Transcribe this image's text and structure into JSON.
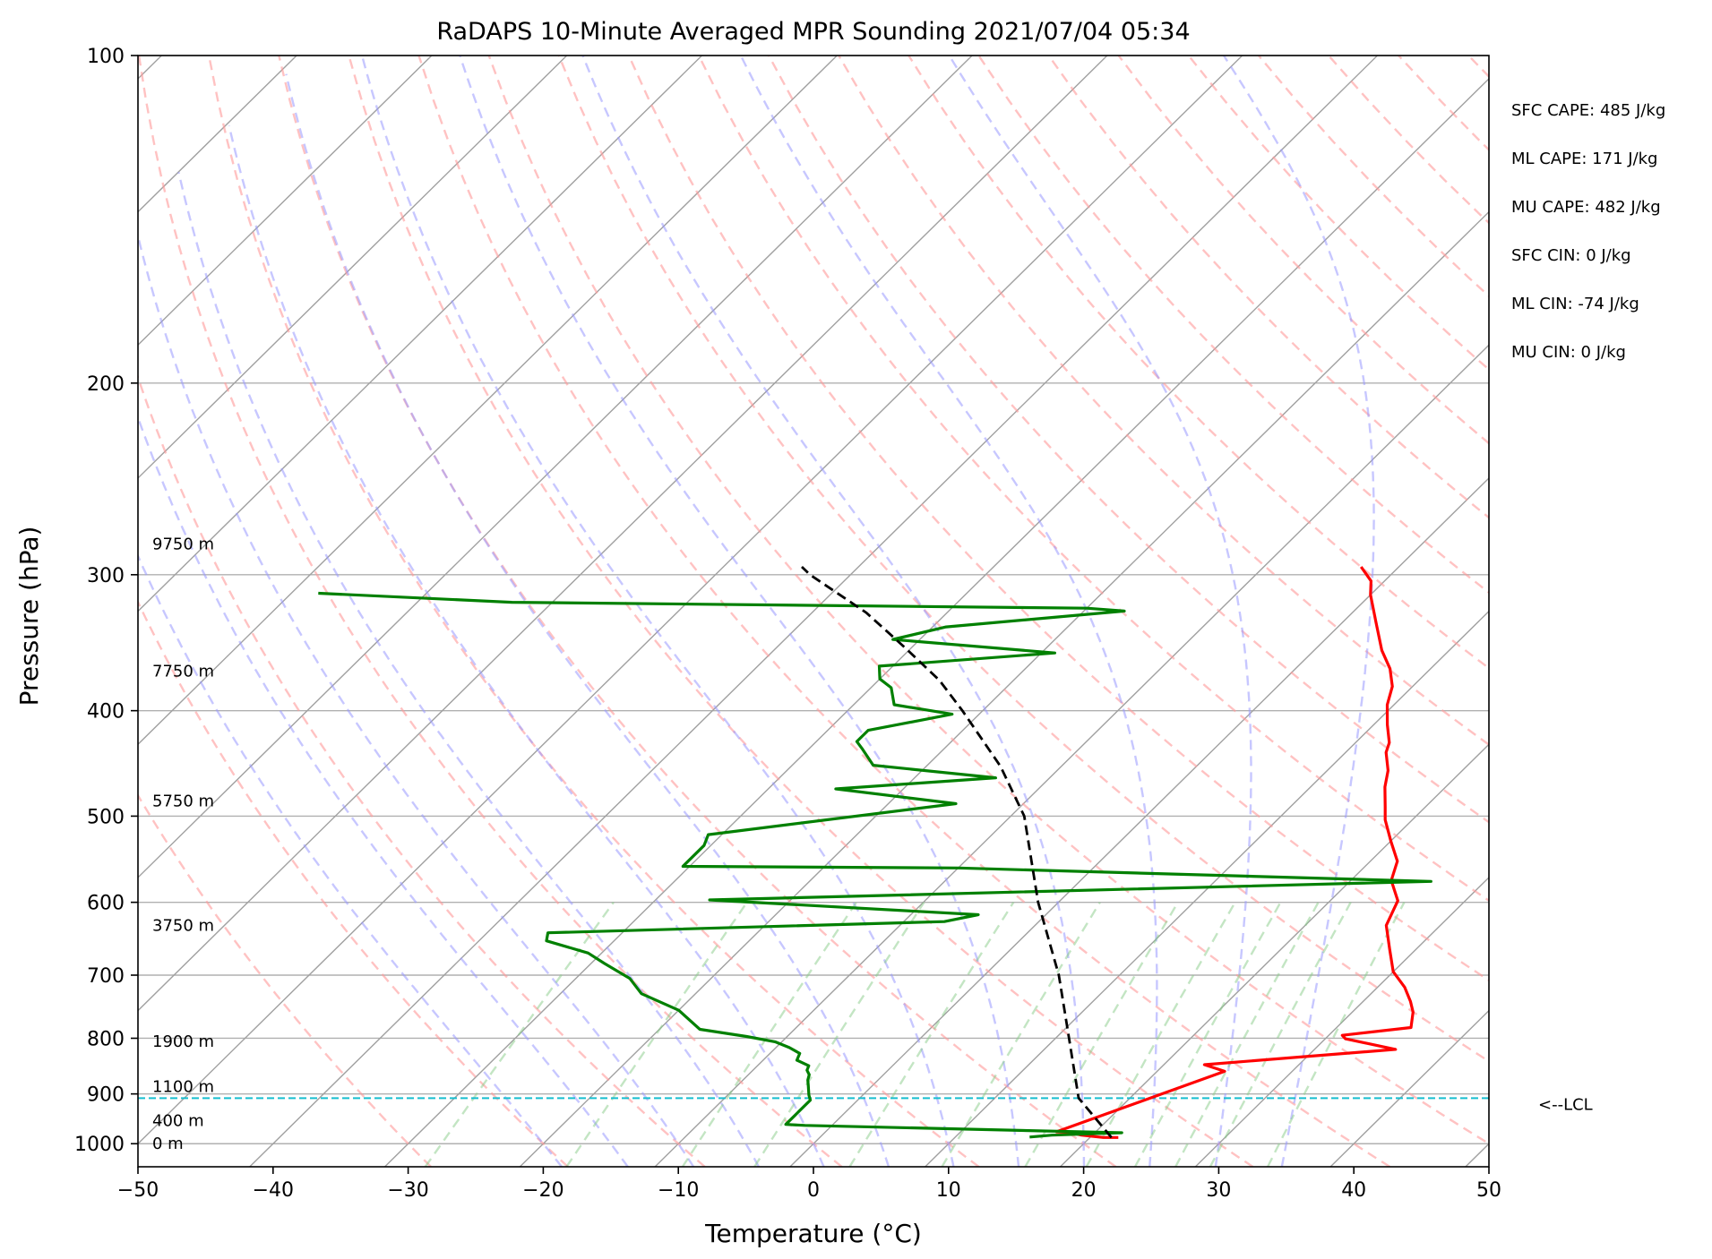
{
  "chart_data": {
    "type": "line",
    "subtype": "skew-t log-p sounding",
    "title": "RaDAPS 10-Minute Averaged MPR Sounding 2021/07/04 05:34",
    "xlabel": "Temperature (°C)",
    "ylabel": "Pressure (hPa)",
    "xlim": [
      -50,
      50
    ],
    "ylim": [
      1050,
      100
    ],
    "y_scale": "log",
    "x_ticks": [
      -50,
      -40,
      -30,
      -20,
      -10,
      0,
      10,
      20,
      30,
      40,
      50
    ],
    "x_tick_labels": [
      "−50",
      "−40",
      "−30",
      "−20",
      "−10",
      "0",
      "10",
      "20",
      "30",
      "40",
      "50"
    ],
    "y_ticks": [
      100,
      200,
      300,
      400,
      500,
      600,
      700,
      800,
      900,
      1000
    ],
    "y_tick_labels": [
      "100",
      "200",
      "300",
      "400",
      "500",
      "600",
      "700",
      "800",
      "900",
      "1000"
    ],
    "grid": true,
    "reference_lines": {
      "dry_adiabats_theta_c": [
        -30,
        -20,
        -10,
        0,
        10,
        20,
        30,
        40,
        50,
        60,
        70,
        80,
        90,
        100,
        110,
        120,
        130,
        140,
        150,
        160,
        170,
        180,
        190,
        200
      ],
      "moist_adiabats_c": [
        -20,
        -15,
        -10,
        -5,
        0,
        5,
        10,
        15,
        20,
        25,
        30,
        35
      ],
      "mixing_ratio_lines_p_top": 600
    },
    "series": [
      {
        "role": "temperature",
        "color": "#ff0000",
        "points": [
          [
            22.1,
            987
          ],
          [
            21.0,
            987
          ],
          [
            19.2,
            982
          ],
          [
            18.0,
            976
          ],
          [
            17.1,
            975
          ],
          [
            25.0,
            858
          ],
          [
            23.0,
            846
          ],
          [
            36.0,
            819
          ],
          [
            31.5,
            801
          ],
          [
            31.0,
            795
          ],
          [
            35.5,
            782
          ],
          [
            34.5,
            757
          ],
          [
            33.5,
            740
          ],
          [
            32.0,
            718
          ],
          [
            30.0,
            695
          ],
          [
            28.0,
            662
          ],
          [
            26.0,
            630
          ],
          [
            25.0,
            598
          ],
          [
            23.0,
            573
          ],
          [
            22.0,
            550
          ],
          [
            20.0,
            527
          ],
          [
            18.0,
            504
          ],
          [
            17.0,
            490
          ],
          [
            15.5,
            470
          ],
          [
            14.5,
            454
          ],
          [
            13.0,
            437
          ],
          [
            12.5,
            428
          ],
          [
            11.0,
            412
          ],
          [
            9.5,
            395
          ],
          [
            8.5,
            380
          ],
          [
            7.0,
            366
          ],
          [
            5.0,
            352
          ],
          [
            2.5,
            332
          ],
          [
            0.0,
            313
          ],
          [
            -1.0,
            304
          ],
          [
            -2.8,
            295
          ]
        ]
      },
      {
        "role": "dewpoint",
        "color": "#008000",
        "points": [
          [
            15.5,
            986
          ],
          [
            17.0,
            982
          ],
          [
            20.0,
            979
          ],
          [
            22.0,
            977
          ],
          [
            -2.0,
            962
          ],
          [
            -3.5,
            960
          ],
          [
            -3.5,
            912
          ],
          [
            -4.0,
            902
          ],
          [
            -4.8,
            883
          ],
          [
            -5.2,
            874
          ],
          [
            -5.5,
            864
          ],
          [
            -6.0,
            856
          ],
          [
            -6.2,
            848
          ],
          [
            -7.5,
            838
          ],
          [
            -7.8,
            826
          ],
          [
            -9.0,
            816
          ],
          [
            -10.5,
            806
          ],
          [
            -13.0,
            797
          ],
          [
            -17.0,
            785
          ],
          [
            -20.0,
            754
          ],
          [
            -24.0,
            728
          ],
          [
            -26.0,
            705
          ],
          [
            -29.0,
            683
          ],
          [
            -31.0,
            668
          ],
          [
            -35.0,
            651
          ],
          [
            -35.5,
            640
          ],
          [
            -7.0,
            625
          ],
          [
            -5.0,
            616
          ],
          [
            -26.0,
            597
          ],
          [
            26.0,
            574
          ],
          [
            -10.0,
            558
          ],
          [
            -30.5,
            556
          ],
          [
            -30.5,
            532
          ],
          [
            -31.0,
            520
          ],
          [
            -15.0,
            487
          ],
          [
            -25.0,
            472
          ],
          [
            -14.0,
            461
          ],
          [
            -24.0,
            449
          ],
          [
            -26.0,
            434
          ],
          [
            -27.0,
            427
          ],
          [
            -27.0,
            417
          ],
          [
            -22.0,
            403
          ],
          [
            -27.0,
            395
          ],
          [
            -28.5,
            381
          ],
          [
            -30.0,
            374
          ],
          [
            -31.0,
            364
          ],
          [
            -19.0,
            354
          ],
          [
            -32.0,
            344
          ],
          [
            -29.0,
            335
          ],
          [
            -17.0,
            324
          ],
          [
            -20.0,
            322
          ],
          [
            -63.0,
            318
          ],
          [
            -78.0,
            312
          ]
        ]
      },
      {
        "role": "parcel path",
        "color": "#000000",
        "style": "dashed",
        "points": [
          [
            21.6,
            987
          ],
          [
            16.2,
            908
          ],
          [
            11.0,
            800
          ],
          [
            5.5,
            700
          ],
          [
            -1.5,
            600
          ],
          [
            -9.0,
            500
          ],
          [
            -14.5,
            450
          ],
          [
            -21.5,
            400
          ],
          [
            -25.5,
            375
          ],
          [
            -30.5,
            350
          ],
          [
            -36.0,
            325
          ],
          [
            -43.0,
            300
          ],
          [
            -44.2,
            295
          ]
        ]
      }
    ],
    "lcl": {
      "pressure": 908,
      "label": "<--LCL",
      "color": "#17becf"
    },
    "height_labels": [
      {
        "label": "0 m",
        "pressure": 1000
      },
      {
        "label": "400 m",
        "pressure": 952
      },
      {
        "label": "1100 m",
        "pressure": 886
      },
      {
        "label": "1900 m",
        "pressure": 805
      },
      {
        "label": "3750 m",
        "pressure": 630
      },
      {
        "label": "5750 m",
        "pressure": 484
      },
      {
        "label": "7750 m",
        "pressure": 368
      },
      {
        "label": "9750 m",
        "pressure": 281
      }
    ],
    "annotations": [
      "SFC CAPE: 485 J/kg",
      "ML CAPE: 171 J/kg",
      "MU CAPE: 482 J/kg",
      "SFC CIN: 0 J/kg",
      "ML CIN: -74 J/kg",
      "MU CIN: 0 J/kg"
    ]
  }
}
